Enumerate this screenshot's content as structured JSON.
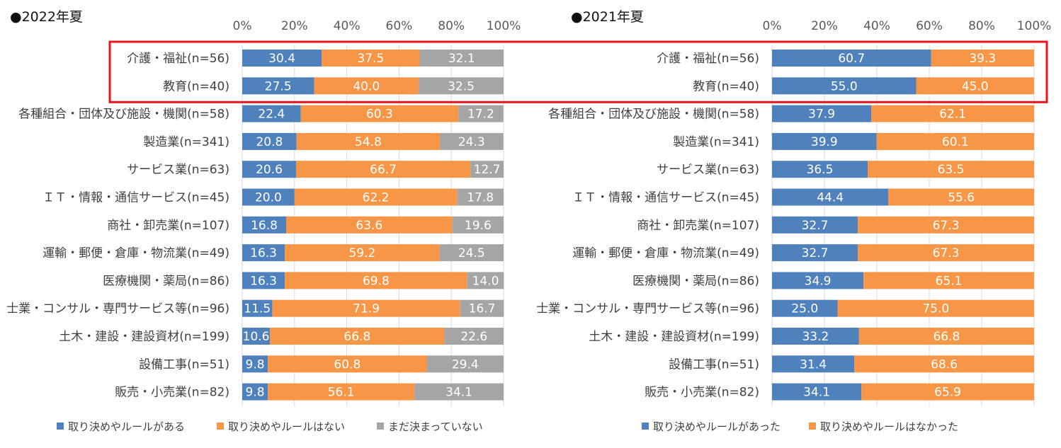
{
  "colors": {
    "blue": "#4f81bd",
    "orange": "#f79646",
    "gray": "#a5a5a5",
    "highlight": "#e8141c",
    "grid": "#d9d9d9"
  },
  "chart_data": [
    {
      "type": "bar",
      "orientation": "horizontal",
      "stacked": true,
      "title": "●2022年夏",
      "xlim": [
        0,
        100
      ],
      "xticks": [
        "0%",
        "20%",
        "40%",
        "60%",
        "80%",
        "100%"
      ],
      "grid": true,
      "legend_position": "bottom",
      "categories": [
        "介護・福祉(n=56)",
        "教育(n=40)",
        "各種組合・団体及び施設・機関(n=58)",
        "製造業(n=341)",
        "サービス業(n=63)",
        "ＩＴ・情報・通信サービス(n=45)",
        "商社・卸売業(n=107)",
        "運輸・郵便・倉庫・物流業(n=49)",
        "医療機関・薬局(n=86)",
        "士業・コンサル・専門サービス等(n=96)",
        "土木・建設・建設資材(n=199)",
        "設備工事(n=51)",
        "販売・小売業(n=82)"
      ],
      "series": [
        {
          "name": "取り決めやルールがある",
          "color": "blue",
          "values": [
            30.4,
            27.5,
            22.4,
            20.8,
            20.6,
            20.0,
            16.8,
            16.3,
            16.3,
            11.5,
            10.6,
            9.8,
            9.8
          ],
          "labels": [
            "30.4",
            "27.5",
            "22.4",
            "20.8",
            "20.6",
            "20.0",
            "16.8",
            "16.3",
            "16.3",
            "11.5",
            "10.6",
            "9.8",
            "9.8"
          ]
        },
        {
          "name": "取り決めやルールはない",
          "color": "orange",
          "values": [
            37.5,
            40.0,
            60.3,
            54.8,
            66.7,
            62.2,
            63.6,
            59.2,
            69.8,
            71.9,
            66.8,
            60.8,
            56.1
          ],
          "labels": [
            "37.5",
            "40.0",
            "60.3",
            "54.8",
            "66.7",
            "62.2",
            "63.6",
            "59.2",
            "69.8",
            "71.9",
            "66.8",
            "60.8",
            "56.1"
          ]
        },
        {
          "name": "まだ決まっていない",
          "color": "gray",
          "values": [
            32.1,
            32.5,
            17.2,
            24.3,
            12.7,
            17.8,
            19.6,
            24.5,
            14.0,
            16.7,
            22.6,
            29.4,
            34.1
          ],
          "labels": [
            "32.1",
            "32.5",
            "17.2",
            "24.3",
            "12.7",
            "17.8",
            "19.6",
            "24.5",
            "14.0",
            "16.7",
            "22.6",
            "29.4",
            "34.1"
          ]
        }
      ]
    },
    {
      "type": "bar",
      "orientation": "horizontal",
      "stacked": true,
      "title": "●2021年夏",
      "xlim": [
        0,
        100
      ],
      "xticks": [
        "0%",
        "20%",
        "40%",
        "60%",
        "80%",
        "100%"
      ],
      "grid": true,
      "legend_position": "bottom",
      "categories": [
        "介護・福祉(n=56)",
        "教育(n=40)",
        "各種組合・団体及び施設・機関(n=58)",
        "製造業(n=341)",
        "サービス業(n=63)",
        "ＩＴ・情報・通信サービス(n=45)",
        "商社・卸売業(n=107)",
        "運輸・郵便・倉庫・物流業(n=49)",
        "医療機関・薬局(n=86)",
        "士業・コンサル・専門サービス等(n=96)",
        "土木・建設・建設資材(n=199)",
        "設備工事(n=51)",
        "販売・小売業(n=82)"
      ],
      "series": [
        {
          "name": "取り決めやルールがあった",
          "color": "blue",
          "values": [
            60.7,
            55.0,
            37.9,
            39.9,
            36.5,
            44.4,
            32.7,
            32.7,
            34.9,
            25.0,
            33.2,
            31.4,
            34.1
          ],
          "labels": [
            "60.7",
            "55.0",
            "37.9",
            "39.9",
            "36.5",
            "44.4",
            "32.7",
            "32.7",
            "34.9",
            "25.0",
            "33.2",
            "31.4",
            "34.1"
          ]
        },
        {
          "name": "取り決めやルールはなかった",
          "color": "orange",
          "values": [
            39.3,
            45.0,
            62.1,
            60.1,
            63.5,
            55.6,
            67.3,
            67.3,
            65.1,
            75.0,
            66.8,
            68.6,
            65.9
          ],
          "labels": [
            "39.3",
            "45.0",
            "62.1",
            "60.1",
            "63.5",
            "55.6",
            "67.3",
            "67.3",
            "65.1",
            "75.0",
            "66.8",
            "68.6",
            "65.9"
          ]
        }
      ]
    }
  ],
  "highlight": {
    "label": "highlighted rows",
    "rows": [
      0,
      1
    ]
  }
}
